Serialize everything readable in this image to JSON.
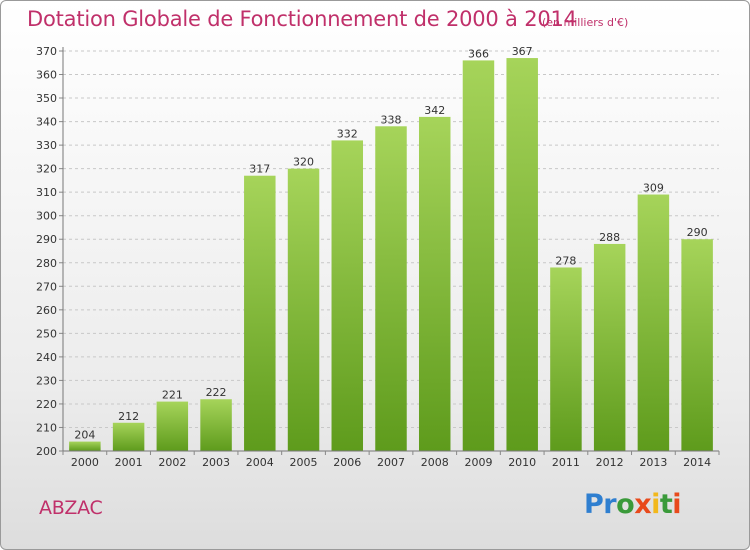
{
  "title": "Dotation Globale de Fonctionnement de 2000 à 2014",
  "subtitle": "(en milliers d'€)",
  "commune": "ABZAC",
  "logo": {
    "letters": [
      {
        "ch": "P",
        "color": "#2f7fd0"
      },
      {
        "ch": "r",
        "color": "#2f7fd0"
      },
      {
        "ch": "o",
        "color": "#3a9a3a"
      },
      {
        "ch": "x",
        "color": "#e84a1c"
      },
      {
        "ch": "i",
        "color": "#f2b81c"
      },
      {
        "ch": "t",
        "color": "#3a9a3a"
      },
      {
        "ch": "i",
        "color": "#e84a1c"
      }
    ]
  },
  "colors": {
    "bar_top": "#a6d45a",
    "bar_bottom": "#5e9b1c",
    "accent": "#c0306a"
  },
  "chart_data": {
    "type": "bar",
    "categories": [
      "2000",
      "2001",
      "2002",
      "2003",
      "2004",
      "2005",
      "2006",
      "2007",
      "2008",
      "2009",
      "2010",
      "2011",
      "2012",
      "2013",
      "2014"
    ],
    "values": [
      204,
      212,
      221,
      222,
      317,
      320,
      332,
      338,
      342,
      366,
      367,
      278,
      288,
      309,
      290
    ],
    "ylim": [
      200,
      370
    ],
    "ytick_step": 10,
    "grid": true
  }
}
